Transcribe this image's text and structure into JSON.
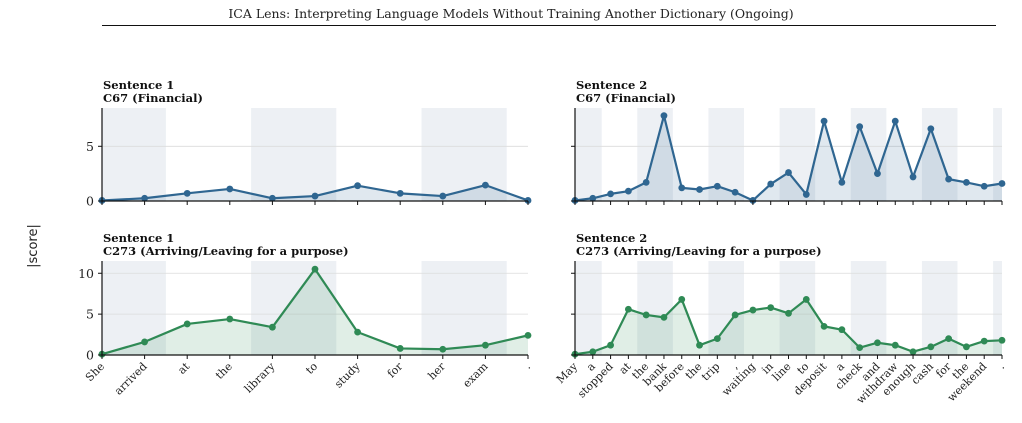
{
  "page": {
    "header_title": "ICA Lens: Interpreting Language Models Without Training Another Dictionary (Ongoing)"
  },
  "figure": {
    "ylabel": "|score|",
    "colors": {
      "financial": "#2f6691",
      "arriving": "#2f8a55",
      "band": "#edf0f4",
      "grid": "#dcdcdc"
    }
  },
  "sentences": {
    "s1": [
      "She",
      "arrived",
      "at",
      "the",
      "library",
      "to",
      "study",
      "for",
      "her",
      "exam",
      "."
    ],
    "s2": [
      "May",
      "a",
      "stopped",
      "at",
      "the",
      "bank",
      "before",
      "the",
      "trip",
      ",",
      "waiting",
      "in",
      "line",
      "to",
      "deposit",
      "a",
      "check",
      "and",
      "withdraw",
      "enough",
      "cash",
      "for",
      "the",
      "weekend",
      "."
    ]
  },
  "chart_data": [
    {
      "type": "area",
      "title": "Sentence 1",
      "subtitle": "C67 (Financial)",
      "sentence": "s1",
      "color": "financial",
      "ylim": [
        0,
        8.5
      ],
      "yticks": [
        0,
        5
      ],
      "values": [
        0.05,
        0.25,
        0.7,
        1.1,
        0.25,
        0.45,
        1.4,
        0.7,
        0.45,
        1.45,
        0.05
      ]
    },
    {
      "type": "area",
      "title": "Sentence 2",
      "subtitle": "C67 (Financial)",
      "sentence": "s2",
      "color": "financial",
      "ylim": [
        0,
        8.5
      ],
      "yticks": [
        0,
        5
      ],
      "values": [
        0.05,
        0.25,
        0.65,
        0.9,
        1.7,
        7.8,
        1.2,
        1.05,
        1.35,
        0.8,
        0.05,
        1.55,
        2.6,
        0.6,
        7.3,
        1.7,
        6.8,
        2.5,
        7.3,
        2.2,
        6.6,
        2.0,
        1.7,
        1.35,
        1.6
      ]
    },
    {
      "type": "area",
      "title": "Sentence 1",
      "subtitle": "C273 (Arriving/Leaving for a purpose)",
      "sentence": "s1",
      "color": "arriving",
      "ylim": [
        0,
        11.5
      ],
      "yticks": [
        0,
        5,
        10
      ],
      "values": [
        0.1,
        1.6,
        3.8,
        4.4,
        3.4,
        10.5,
        2.8,
        0.8,
        0.7,
        1.2,
        2.4
      ]
    },
    {
      "type": "area",
      "title": "Sentence 2",
      "subtitle": "C273 (Arriving/Leaving for a purpose)",
      "sentence": "s2",
      "color": "arriving",
      "ylim": [
        0,
        11.5
      ],
      "yticks": [
        0,
        5,
        10
      ],
      "values": [
        0.1,
        0.4,
        1.2,
        5.6,
        4.9,
        4.6,
        6.8,
        1.2,
        2.0,
        4.9,
        5.5,
        5.8,
        5.1,
        6.8,
        3.5,
        3.1,
        0.9,
        1.5,
        1.2,
        0.4,
        1.0,
        2.0,
        1.0,
        1.7,
        1.8
      ]
    }
  ]
}
